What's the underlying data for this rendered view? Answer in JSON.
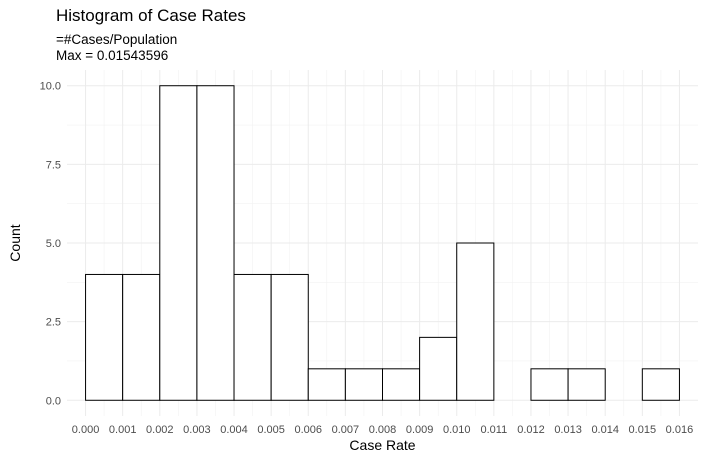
{
  "chart_data": {
    "type": "bar",
    "title": "Histogram of Case Rates",
    "subtitle_lines": [
      "=#Cases/Population",
      "Max = 0.01543596"
    ],
    "xlabel": "Case Rate",
    "ylabel": "Count",
    "bin_width": 0.001,
    "bins": [
      {
        "start": 0.0,
        "end": 0.001,
        "count": 4
      },
      {
        "start": 0.001,
        "end": 0.002,
        "count": 4
      },
      {
        "start": 0.002,
        "end": 0.003,
        "count": 10
      },
      {
        "start": 0.003,
        "end": 0.004,
        "count": 10
      },
      {
        "start": 0.004,
        "end": 0.005,
        "count": 4
      },
      {
        "start": 0.005,
        "end": 0.006,
        "count": 4
      },
      {
        "start": 0.006,
        "end": 0.007,
        "count": 1
      },
      {
        "start": 0.007,
        "end": 0.008,
        "count": 1
      },
      {
        "start": 0.008,
        "end": 0.009,
        "count": 1
      },
      {
        "start": 0.009,
        "end": 0.01,
        "count": 2
      },
      {
        "start": 0.01,
        "end": 0.011,
        "count": 5
      },
      {
        "start": 0.011,
        "end": 0.012,
        "count": 0
      },
      {
        "start": 0.012,
        "end": 0.013,
        "count": 1
      },
      {
        "start": 0.013,
        "end": 0.014,
        "count": 1
      },
      {
        "start": 0.014,
        "end": 0.015,
        "count": 0
      },
      {
        "start": 0.015,
        "end": 0.016,
        "count": 1
      }
    ],
    "xticks": [
      0.0,
      0.001,
      0.002,
      0.003,
      0.004,
      0.005,
      0.006,
      0.007,
      0.008,
      0.009,
      0.01,
      0.011,
      0.012,
      0.013,
      0.014,
      0.015,
      0.016
    ],
    "xtick_labels": [
      "0.000",
      "0.001",
      "0.002",
      "0.003",
      "0.004",
      "0.005",
      "0.006",
      "0.007",
      "0.008",
      "0.009",
      "0.010",
      "0.011",
      "0.012",
      "0.013",
      "0.014",
      "0.015",
      "0.016"
    ],
    "yticks": [
      0,
      2.5,
      5,
      7.5,
      10
    ],
    "ytick_labels": [
      "0.0",
      "2.5",
      "5.0",
      "7.5",
      "10.0"
    ],
    "xlim": [
      -0.0005,
      0.0165
    ],
    "ylim": [
      -0.5,
      10.5
    ],
    "grid": true,
    "bar_fill": "#ffffff",
    "bar_stroke": "#000000",
    "grid_major_color": "#ebebeb",
    "grid_minor_color": "#f2f2f2"
  }
}
